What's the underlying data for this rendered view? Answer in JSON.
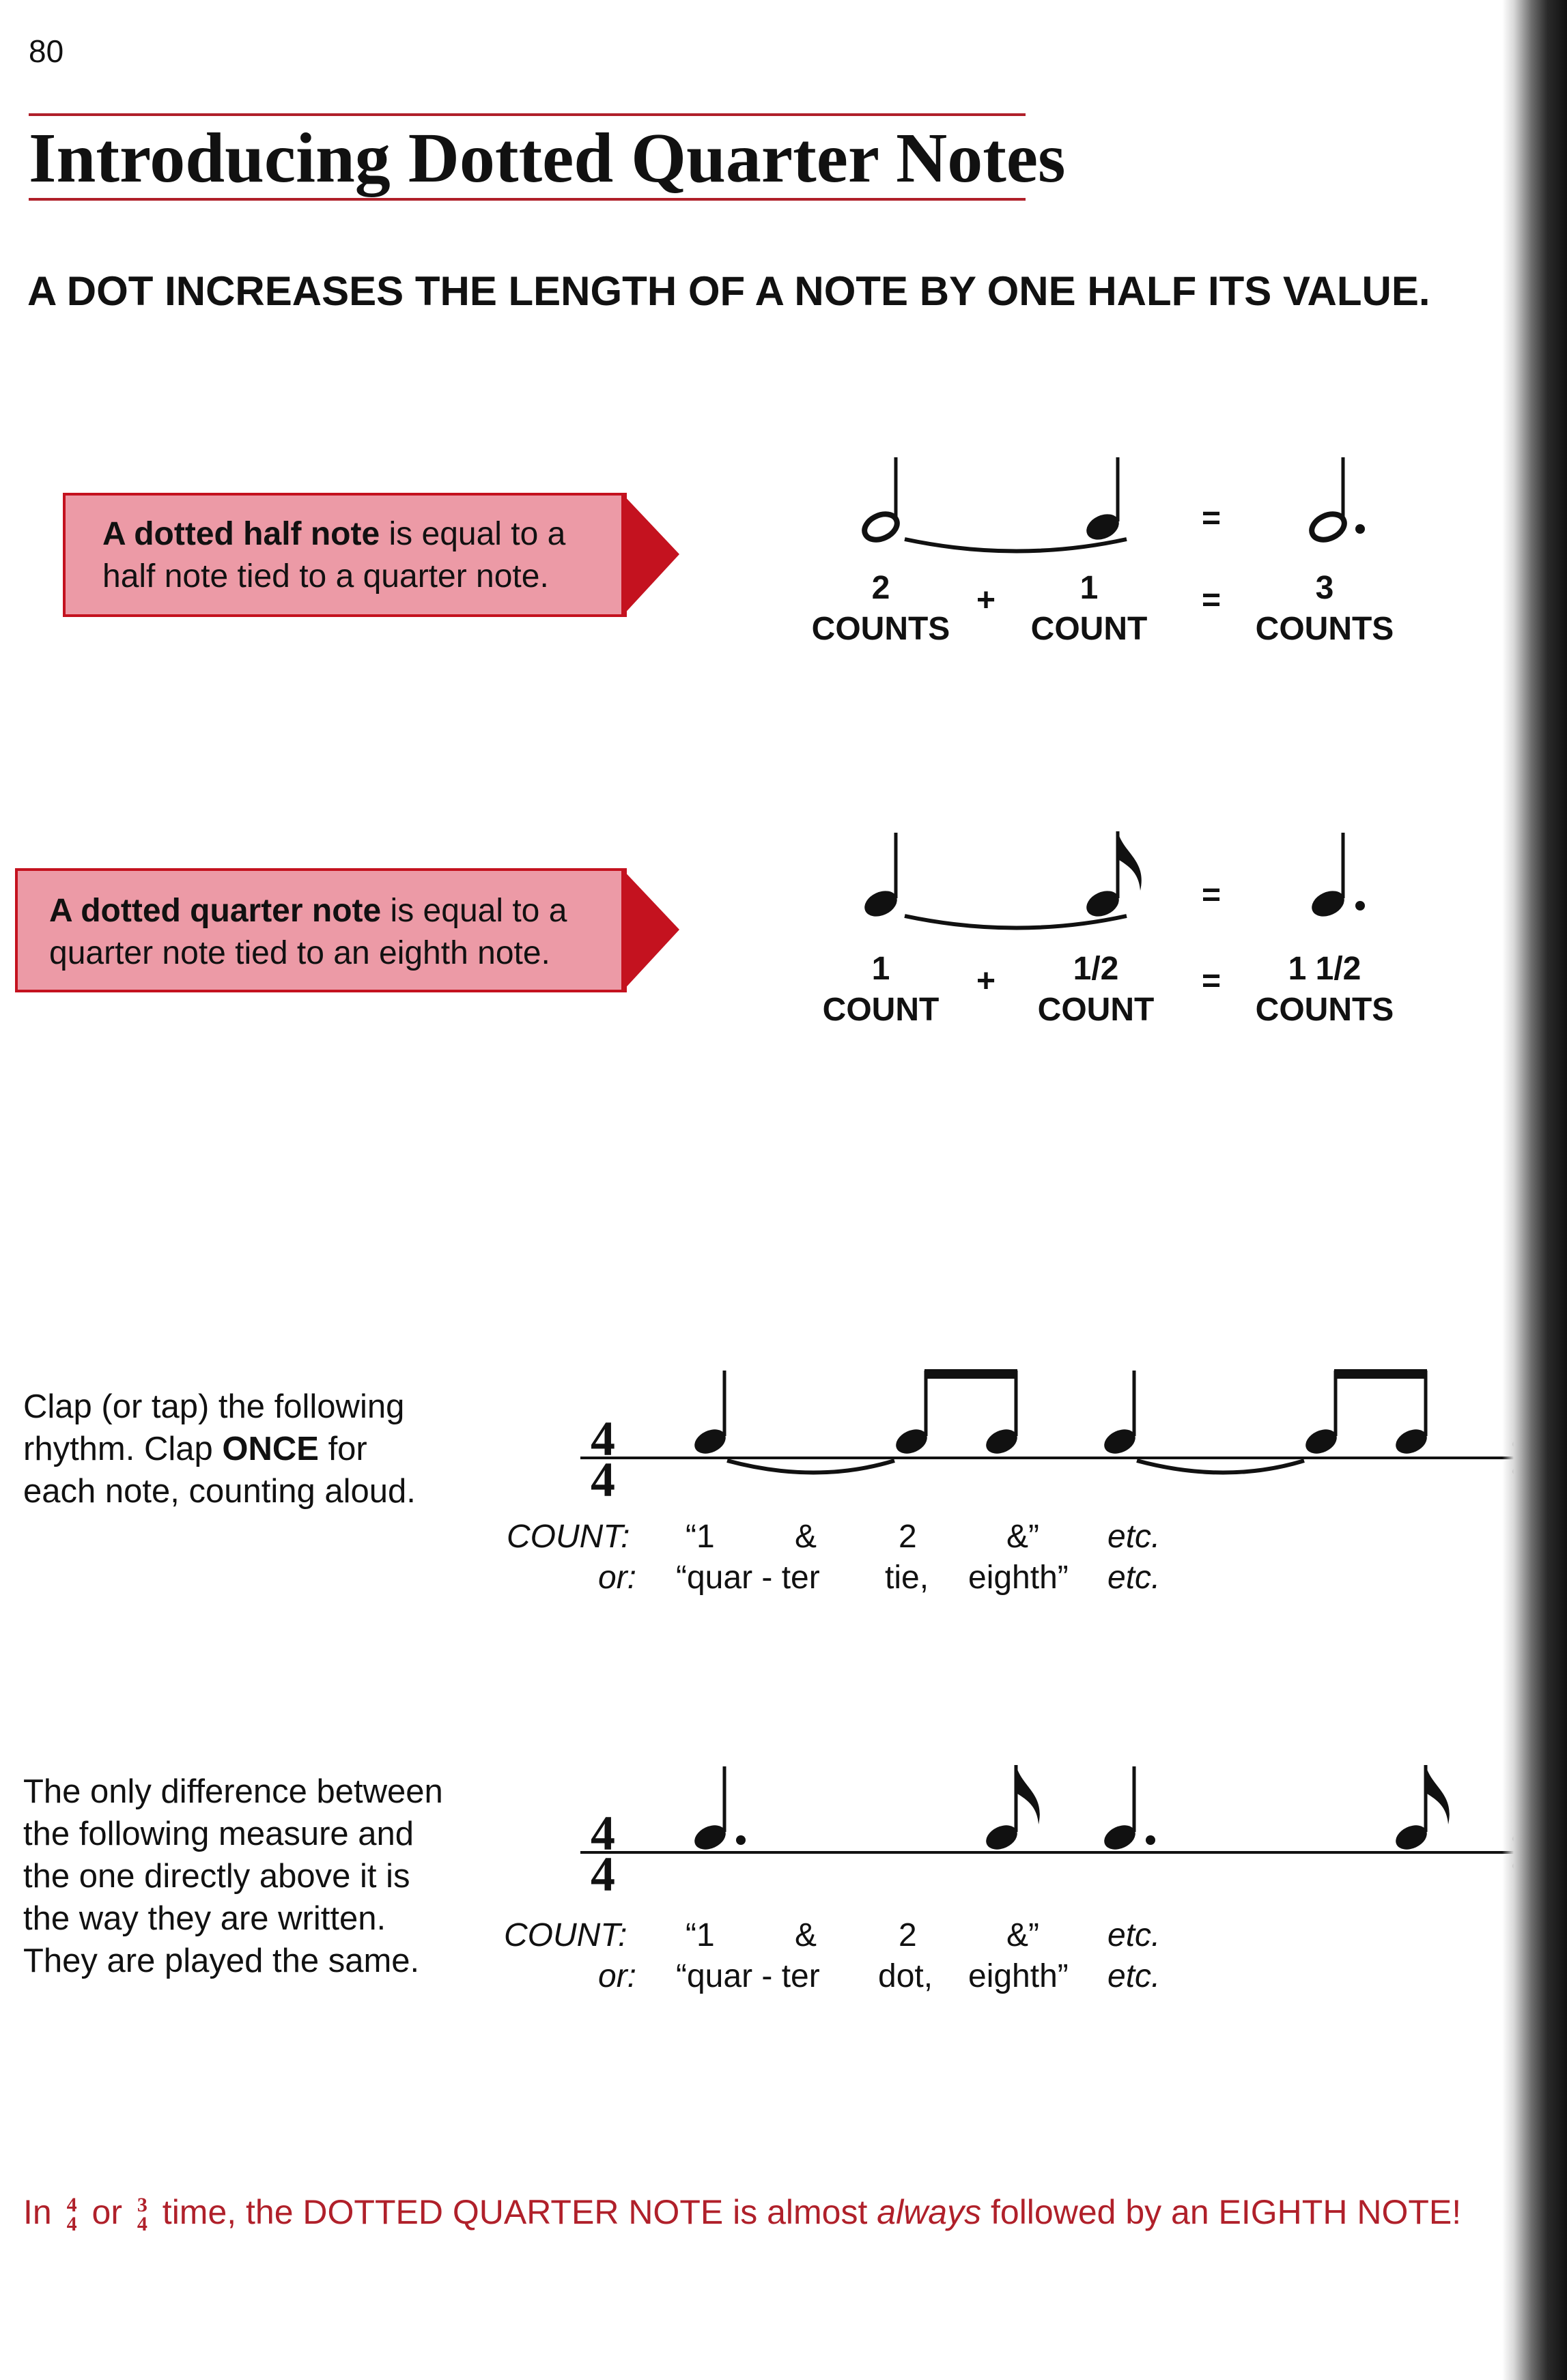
{
  "page_number": "80",
  "title": "Introducing Dotted Quarter Notes",
  "headline": "A DOT INCREASES THE LENGTH OF A NOTE BY ONE HALF ITS VALUE.",
  "colors": {
    "accent_red": "#b0202a",
    "callout_fill": "#ec9aa6",
    "callout_arrow": "#c4121f"
  },
  "section_half": {
    "callout_bold": "A dotted half note",
    "callout_rest1": " is equal to a",
    "callout_line2": "half note tied to a quarter note.",
    "equation": {
      "left_num": "2",
      "left_unit": "COUNTS",
      "plus": "+",
      "mid_num": "1",
      "mid_unit": "COUNT",
      "equals": "=",
      "right_num": "3",
      "right_unit": "COUNTS"
    }
  },
  "section_quarter": {
    "callout_bold": "A dotted quarter note",
    "callout_rest1": " is equal to a",
    "callout_line2": "quarter note tied to an eighth note.",
    "equation": {
      "left_num": "1",
      "left_unit": "COUNT",
      "plus": "+",
      "mid_num": "1/2",
      "mid_unit": "COUNT",
      "equals": "=",
      "right_num": "1 1/2",
      "right_unit": "COUNTS"
    }
  },
  "exercise1": {
    "instruction_line1": "Clap (or tap) the following",
    "instruction_line2a": "rhythm.  Clap ",
    "instruction_bold": "ONCE",
    "instruction_line2b": " for",
    "instruction_line3": "each note, counting aloud.",
    "time_signature": "4/4",
    "count_label": "COUNT:",
    "counts": [
      "“1",
      "&",
      "2",
      "&”",
      "etc."
    ],
    "or_label": "or:",
    "words": [
      "“quar - ter",
      "tie,",
      "eighth”",
      "etc."
    ]
  },
  "exercise2": {
    "instruction_lines": [
      "The only difference between",
      "the following measure and",
      "the one directly above it is",
      "the way they are written.",
      "They are played the same."
    ],
    "time_signature": "4/4",
    "count_label": "COUNT:",
    "counts": [
      "“1",
      "&",
      "2",
      "&”",
      "etc."
    ],
    "or_label": "or:",
    "words": [
      "“quar - ter",
      "dot,",
      "eighth”",
      "etc."
    ]
  },
  "footer": {
    "prefix": "In",
    "ts1_top": "4",
    "ts1_bottom": "4",
    "or": "or",
    "ts2_top": "3",
    "ts2_bottom": "4",
    "text_before_italic": "time, the DOTTED QUARTER NOTE is almost ",
    "italic": "always",
    "text_after_italic": " followed by an EIGHTH NOTE!"
  }
}
